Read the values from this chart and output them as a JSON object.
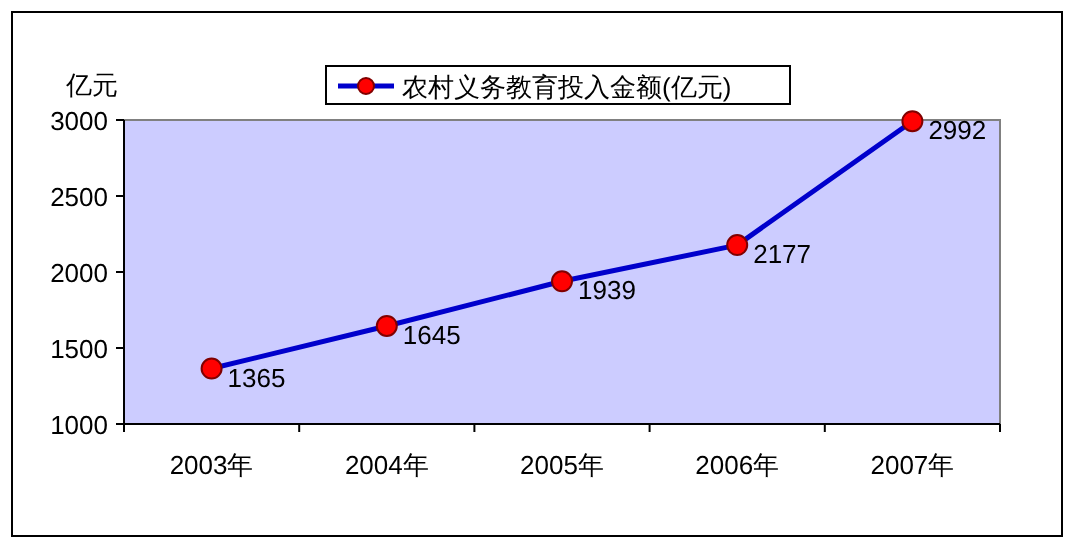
{
  "chart_data": {
    "type": "line",
    "ylabel": "亿元",
    "categories": [
      "2003年",
      "2004年",
      "2005年",
      "2006年",
      "2007年"
    ],
    "series": [
      {
        "name": "农村义务教育投入金额(亿元)",
        "color": "#0000cc",
        "colors": [
          "#ff0000",
          "#ff0000",
          "#ff0000",
          "#ff0000",
          "#ff0000"
        ],
        "values": [
          1365,
          1645,
          1939,
          2177,
          2992
        ]
      }
    ],
    "ylim": [
      1000,
      3000
    ],
    "yticks": [
      1000,
      1500,
      2000,
      2500,
      3000
    ],
    "data_labels": true,
    "legend": "top",
    "marker": "circle",
    "line_style": "solid",
    "grid": false
  }
}
